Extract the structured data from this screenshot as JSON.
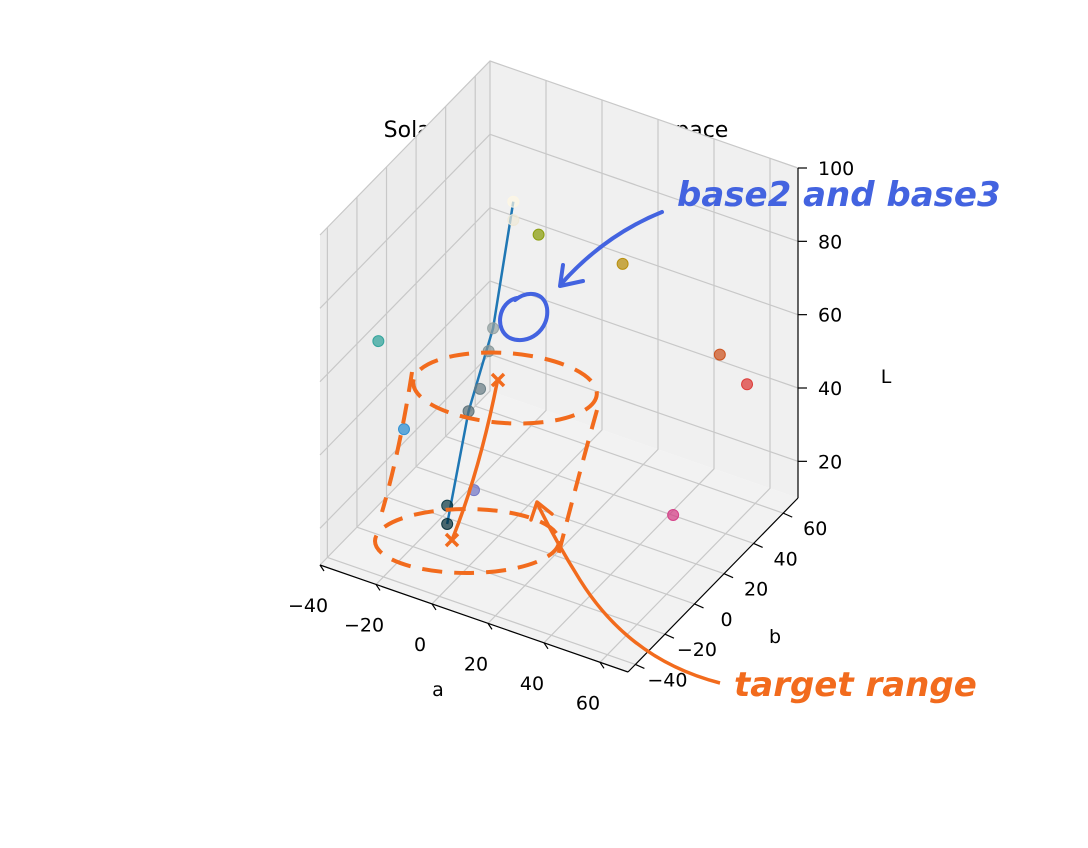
{
  "chart_data": {
    "type": "scatter",
    "projection": "3d",
    "title": "Solarized Dark in CIELAB space",
    "xlabel": "a",
    "ylabel": "b",
    "zlabel": "L",
    "xlim": [
      -40,
      70
    ],
    "ylim": [
      -45,
      70
    ],
    "zlim": [
      10,
      100
    ],
    "xticks": [
      -40,
      -20,
      0,
      20,
      40,
      60
    ],
    "xtick_labels": [
      "−40",
      "−20",
      "0",
      "20",
      "40",
      "60"
    ],
    "yticks": [
      -40,
      -20,
      0,
      20,
      40,
      60
    ],
    "ytick_labels": [
      "−40",
      "−20",
      "0",
      "20",
      "40",
      "60"
    ],
    "zticks": [
      20,
      40,
      60,
      80,
      100
    ],
    "ztick_labels": [
      "20",
      "40",
      "60",
      "80",
      "100"
    ],
    "grid": true,
    "points": [
      {
        "a": -12,
        "b": -12,
        "L": 15,
        "color": "#002b36"
      },
      {
        "a": -12,
        "b": -12,
        "L": 20,
        "color": "#073642"
      },
      {
        "a": -7,
        "b": -7,
        "L": 45,
        "color": "#586e75"
      },
      {
        "a": -5,
        "b": -3,
        "L": 50,
        "color": "#657b83"
      },
      {
        "a": -3,
        "b": -1,
        "L": 60,
        "color": "#839496"
      },
      {
        "a": -3,
        "b": 2,
        "L": 65,
        "color": "#93a1a1"
      },
      {
        "a": 0,
        "b": 10,
        "L": 92,
        "color": "#eee8d5"
      },
      {
        "a": 0,
        "b": 10,
        "L": 97,
        "color": "#fdf6e3"
      },
      {
        "a": 10,
        "b": 65,
        "L": 60,
        "color": "#b58900"
      },
      {
        "a": 50,
        "b": 55,
        "L": 50,
        "color": "#cb4b16"
      },
      {
        "a": 65,
        "b": 45,
        "L": 50,
        "color": "#dc322f"
      },
      {
        "a": 65,
        "b": -5,
        "L": 35,
        "color": "#d33682"
      },
      {
        "a": 15,
        "b": -45,
        "L": 45,
        "color": "#6c71c4"
      },
      {
        "a": -10,
        "b": -45,
        "L": 55,
        "color": "#268bd2"
      },
      {
        "a": -35,
        "b": -15,
        "L": 60,
        "color": "#2aa198"
      },
      {
        "a": -20,
        "b": 65,
        "L": 60,
        "color": "#859900"
      }
    ],
    "trend_line": {
      "color": "#1f77b4",
      "points": [
        {
          "a": -12,
          "b": -12,
          "L": 15
        },
        {
          "a": -7,
          "b": -7,
          "L": 45
        },
        {
          "a": -3,
          "b": 2,
          "L": 65
        },
        {
          "a": 0,
          "b": 10,
          "L": 97
        }
      ]
    },
    "annotations": [
      {
        "text": "base2 and base3",
        "color": "#4363e0"
      },
      {
        "text": "target range",
        "color": "#f26b1d"
      }
    ]
  }
}
